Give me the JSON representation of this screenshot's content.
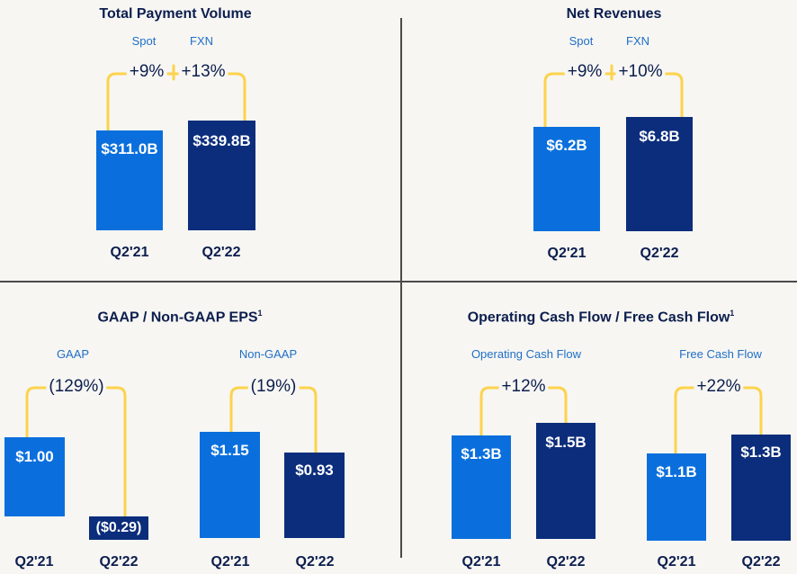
{
  "colors": {
    "q21_bar": "#0a6fdc",
    "q22_bar": "#0b2d7b",
    "bracket": "#fcd34d",
    "text_dark": "#0c1e4e",
    "label_blue": "#1f6fc6"
  },
  "chart_data": [
    {
      "type": "bar",
      "title": "Total Payment Volume",
      "categories": [
        "Q2'21",
        "Q2'22"
      ],
      "values": [
        311.0,
        339.8
      ],
      "value_labels": [
        "$311.0B",
        "$339.8B"
      ],
      "changes": [
        {
          "name": "Spot",
          "value": "+9%"
        },
        {
          "name": "FXN",
          "value": "+13%"
        }
      ]
    },
    {
      "type": "bar",
      "title": "Net Revenues",
      "categories": [
        "Q2'21",
        "Q2'22"
      ],
      "values": [
        6.2,
        6.8
      ],
      "value_labels": [
        "$6.2B",
        "$6.8B"
      ],
      "changes": [
        {
          "name": "Spot",
          "value": "+9%"
        },
        {
          "name": "FXN",
          "value": "+10%"
        }
      ]
    },
    {
      "type": "bar",
      "title": "GAAP / Non-GAAP EPS",
      "title_sup": "1",
      "groups": [
        {
          "name": "GAAP",
          "categories": [
            "Q2'21",
            "Q2'22"
          ],
          "values": [
            1.0,
            -0.29
          ],
          "value_labels": [
            "$1.00",
            "($0.29)"
          ],
          "change": "(129%)"
        },
        {
          "name": "Non-GAAP",
          "categories": [
            "Q2'21",
            "Q2'22"
          ],
          "values": [
            1.15,
            0.93
          ],
          "value_labels": [
            "$1.15",
            "$0.93"
          ],
          "change": "(19%)"
        }
      ]
    },
    {
      "type": "bar",
      "title": "Operating Cash Flow / Free Cash Flow",
      "title_sup": "1",
      "groups": [
        {
          "name": "Operating Cash Flow",
          "categories": [
            "Q2'21",
            "Q2'22"
          ],
          "values": [
            1.3,
            1.5
          ],
          "value_labels": [
            "$1.3B",
            "$1.5B"
          ],
          "change": "+12%"
        },
        {
          "name": "Free Cash Flow",
          "categories": [
            "Q2'21",
            "Q2'22"
          ],
          "values": [
            1.1,
            1.3
          ],
          "value_labels": [
            "$1.1B",
            "$1.3B"
          ],
          "change": "+22%"
        }
      ]
    }
  ]
}
